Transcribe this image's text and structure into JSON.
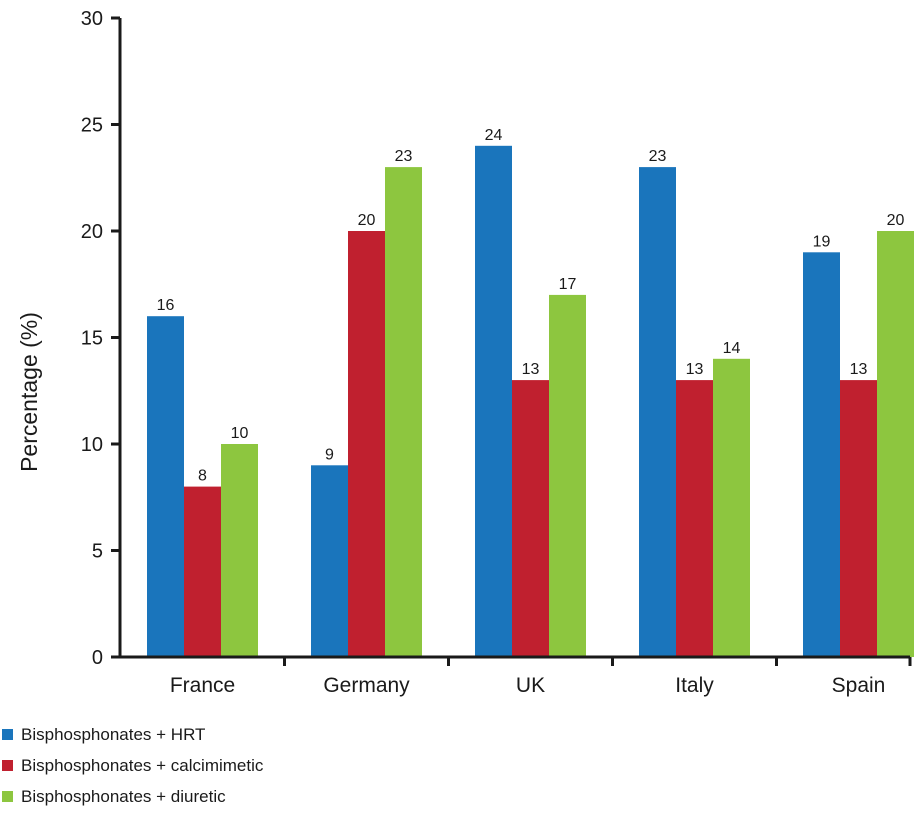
{
  "chart_data": {
    "type": "bar",
    "categories": [
      "France",
      "Germany",
      "UK",
      "Italy",
      "Spain"
    ],
    "series": [
      {
        "name": "Bisphosphonates + HRT",
        "color": "#1a75bc",
        "values": [
          16,
          9,
          24,
          23,
          19
        ]
      },
      {
        "name": "Bisphosphonates + calcimimetic",
        "color": "#c0202f",
        "values": [
          8,
          20,
          13,
          13,
          13
        ]
      },
      {
        "name": "Bisphosphonates + diuretic",
        "color": "#8dc63f",
        "values": [
          10,
          23,
          17,
          14,
          20
        ]
      }
    ],
    "title": "",
    "xlabel": "",
    "ylabel": "Percentage (%)",
    "ylim": [
      0,
      30
    ],
    "yticks": [
      0,
      5,
      10,
      15,
      20,
      25,
      30
    ],
    "data_labels": true,
    "grid": false,
    "legend_position": "bottom-left"
  }
}
